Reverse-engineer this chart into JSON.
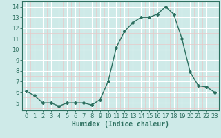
{
  "x": [
    0,
    1,
    2,
    3,
    4,
    5,
    6,
    7,
    8,
    9,
    10,
    11,
    12,
    13,
    14,
    15,
    16,
    17,
    18,
    19,
    20,
    21,
    22,
    23
  ],
  "y": [
    6.1,
    5.7,
    5.0,
    5.0,
    4.7,
    5.0,
    5.0,
    5.0,
    4.8,
    5.3,
    7.0,
    10.2,
    11.7,
    12.5,
    13.0,
    13.0,
    13.3,
    14.0,
    13.3,
    11.0,
    7.9,
    6.6,
    6.5,
    6.0
  ],
  "line_color": "#2d7060",
  "marker": "D",
  "markersize": 2.0,
  "linewidth": 1.0,
  "bg_color": "#ceeae8",
  "grid_color_major": "#ffffff",
  "grid_color_minor": "#e8c8c8",
  "xlabel": "Humidex (Indice chaleur)",
  "xlabel_fontsize": 7,
  "tick_fontsize": 6,
  "ylim": [
    4.3,
    14.5
  ],
  "xlim": [
    -0.5,
    23.5
  ],
  "yticks": [
    5,
    6,
    7,
    8,
    9,
    10,
    11,
    12,
    13,
    14
  ],
  "xticks": [
    0,
    1,
    2,
    3,
    4,
    5,
    6,
    7,
    8,
    9,
    10,
    11,
    12,
    13,
    14,
    15,
    16,
    17,
    18,
    19,
    20,
    21,
    22,
    23
  ]
}
